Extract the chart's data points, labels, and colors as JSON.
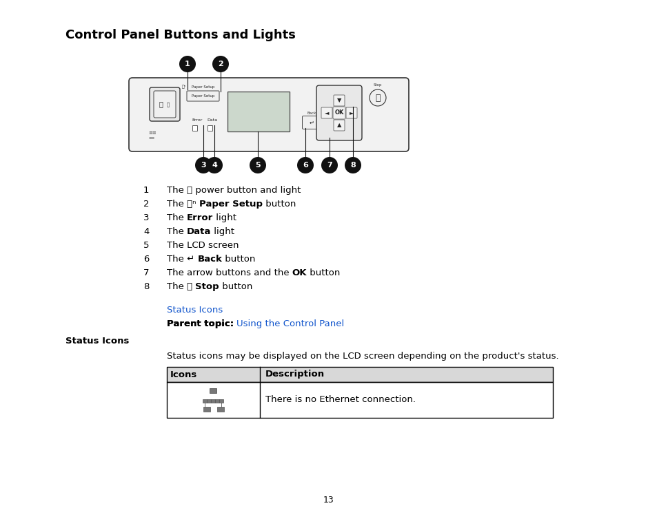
{
  "title": "Control Panel Buttons and Lights",
  "bg_color": "#ffffff",
  "text_color": "#000000",
  "link_color": "#1155CC",
  "items": [
    {
      "num": "1",
      "parts": [
        [
          "The ⏻ power button and light",
          "normal"
        ]
      ]
    },
    {
      "num": "2",
      "parts": [
        [
          "The ⦿ⁿ ",
          "normal"
        ],
        [
          "Paper Setup",
          "bold"
        ],
        [
          " button",
          "normal"
        ]
      ]
    },
    {
      "num": "3",
      "parts": [
        [
          "The ",
          "normal"
        ],
        [
          "Error",
          "bold"
        ],
        [
          " light",
          "normal"
        ]
      ]
    },
    {
      "num": "4",
      "parts": [
        [
          "The ",
          "normal"
        ],
        [
          "Data",
          "bold"
        ],
        [
          " light",
          "normal"
        ]
      ]
    },
    {
      "num": "5",
      "parts": [
        [
          "The LCD screen",
          "normal"
        ]
      ]
    },
    {
      "num": "6",
      "parts": [
        [
          "The ↵ ",
          "normal"
        ],
        [
          "Back",
          "bold"
        ],
        [
          " button",
          "normal"
        ]
      ]
    },
    {
      "num": "7",
      "parts": [
        [
          "The arrow buttons and the ",
          "normal"
        ],
        [
          "OK",
          "bold"
        ],
        [
          " button",
          "normal"
        ]
      ]
    },
    {
      "num": "8",
      "parts": [
        [
          "The ⦻ ",
          "normal"
        ],
        [
          "Stop",
          "bold"
        ],
        [
          " button",
          "normal"
        ]
      ]
    }
  ],
  "link_status_icons": "Status Icons",
  "link_parent_topic_label": "Parent topic:",
  "link_parent_topic": "Using the Control Panel",
  "section_title": "Status Icons",
  "status_desc": "Status icons may be displayed on the LCD screen depending on the product's status.",
  "table_headers": [
    "Icons",
    "Description"
  ],
  "table_desc": "There is no Ethernet connection.",
  "page_number": "13",
  "table_header_bg": "#d8d8d8",
  "table_border_color": "#000000"
}
